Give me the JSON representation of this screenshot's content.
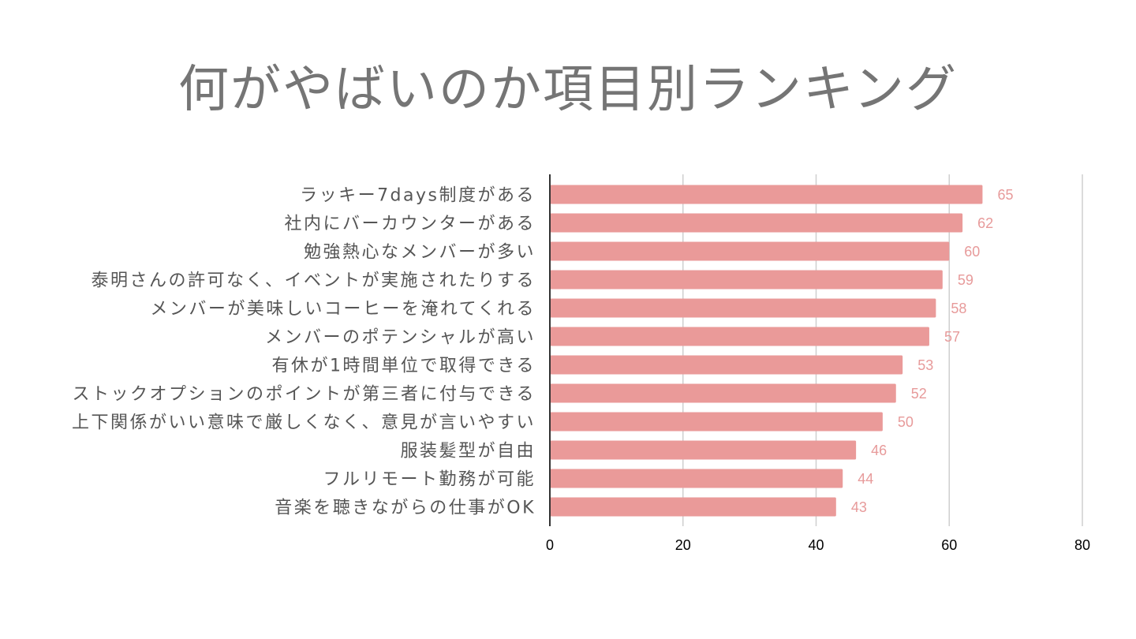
{
  "slide": {
    "title": "何がやばいのか項目別ランキング"
  },
  "chart_data": {
    "type": "bar",
    "orientation": "horizontal",
    "title": "何がやばいのか項目別ランキング",
    "categories": [
      "ラッキー7days制度がある",
      "社内にバーカウンターがある",
      "勉強熱心なメンバーが多い",
      "泰明さんの許可なく、イベントが実施されたりする",
      "メンバーが美味しいコーヒーを淹れてくれる",
      "メンバーのポテンシャルが高い",
      "有休が1時間単位で取得できる",
      "ストックオプションのポイントが第三者に付与できる",
      "上下関係がいい意味で厳しくなく、意見が言いやすい",
      "服装髪型が自由",
      "フルリモート勤務が可能",
      "音楽を聴きながらの仕事がOK"
    ],
    "values": [
      65,
      62,
      60,
      59,
      58,
      57,
      53,
      52,
      50,
      46,
      44,
      43
    ],
    "xlim": [
      0,
      80
    ],
    "xticks": [
      0,
      20,
      40,
      60,
      80
    ],
    "grid": true,
    "data_labels": true,
    "colors": {
      "bar": "#ea9a99",
      "data_label": "#e79a9a",
      "title": "#757575",
      "category_label": "#555555"
    }
  }
}
